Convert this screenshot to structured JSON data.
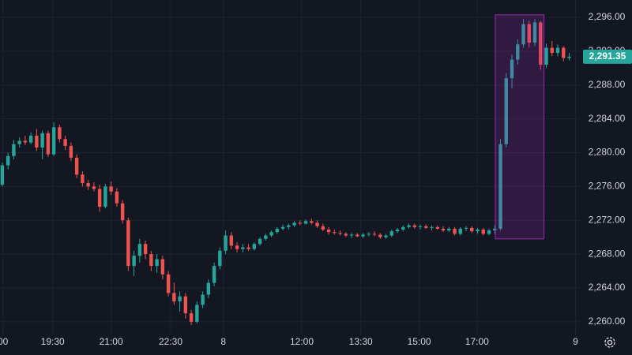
{
  "chart_data": {
    "type": "candlestick",
    "up_color": "#26a69a",
    "down_color": "#ef5350",
    "grid": true,
    "ylim": [
      2258.4,
      2298.05
    ],
    "yticks": [
      {
        "value": 2260,
        "label": "2,260.00"
      },
      {
        "value": 2264,
        "label": "2,264.00"
      },
      {
        "value": 2268,
        "label": "2,268.00"
      },
      {
        "value": 2272,
        "label": "2,272.00"
      },
      {
        "value": 2276,
        "label": "2,276.00"
      },
      {
        "value": 2280,
        "label": "2,280.00"
      },
      {
        "value": 2284,
        "label": "2,284.00"
      },
      {
        "value": 2288,
        "label": "2,288.00"
      },
      {
        "value": 2292,
        "label": "2,292.00"
      },
      {
        "value": 2296,
        "label": "2,296.00"
      }
    ],
    "xlim": [
      -0.4,
      101
    ],
    "xticks": [
      {
        "value": 0.1,
        "label": "00"
      },
      {
        "value": 8.8,
        "label": "19:30"
      },
      {
        "value": 19,
        "label": "21:00"
      },
      {
        "value": 29.4,
        "label": "22:30"
      },
      {
        "value": 38.6,
        "label": "8"
      },
      {
        "value": 52.3,
        "label": "12:00"
      },
      {
        "value": 62.6,
        "label": "13:30"
      },
      {
        "value": 72.8,
        "label": "15:00"
      },
      {
        "value": 82.9,
        "label": "17:00"
      },
      {
        "value": 100.1,
        "label": "9"
      }
    ],
    "current_price": {
      "value": 2291.35,
      "label": "2,291.35",
      "color": "#26a69a"
    },
    "highlight": {
      "x": [
        86.1,
        94.6
      ],
      "y": [
        2269.8,
        2296.3
      ],
      "color": "#9c27b0"
    },
    "ohlc": [
      [
        2276.2,
        2278.8,
        2276.0,
        2278.5
      ],
      [
        2278.5,
        2280.0,
        2278.0,
        2279.6
      ],
      [
        2279.6,
        2281.5,
        2279.2,
        2281.0
      ],
      [
        2281.0,
        2281.8,
        2280.6,
        2281.4
      ],
      [
        2281.4,
        2282.0,
        2280.9,
        2281.2
      ],
      [
        2281.2,
        2282.4,
        2281.0,
        2282.0
      ],
      [
        2282.0,
        2282.8,
        2280.2,
        2280.6
      ],
      [
        2280.6,
        2282.6,
        2279.2,
        2282.3
      ],
      [
        2282.3,
        2282.6,
        2279.5,
        2279.8
      ],
      [
        2279.8,
        2283.6,
        2279.6,
        2283.0
      ],
      [
        2283.0,
        2283.3,
        2281.2,
        2281.6
      ],
      [
        2281.6,
        2282.0,
        2280.3,
        2280.8
      ],
      [
        2280.8,
        2281.2,
        2279.0,
        2279.4
      ],
      [
        2279.4,
        2279.8,
        2277.0,
        2277.4
      ],
      [
        2277.4,
        2277.8,
        2276.0,
        2276.4
      ],
      [
        2276.4,
        2276.8,
        2275.6,
        2276.0
      ],
      [
        2276.0,
        2276.5,
        2275.4,
        2275.7
      ],
      [
        2275.7,
        2276.2,
        2273.0,
        2273.6
      ],
      [
        2273.6,
        2276.3,
        2273.4,
        2276.0
      ],
      [
        2276.0,
        2276.6,
        2275.0,
        2275.4
      ],
      [
        2275.4,
        2275.8,
        2273.6,
        2274.0
      ],
      [
        2274.0,
        2274.4,
        2271.6,
        2272.0
      ],
      [
        2272.0,
        2272.3,
        2266.0,
        2266.6
      ],
      [
        2266.6,
        2268.4,
        2265.4,
        2267.8
      ],
      [
        2267.8,
        2269.8,
        2267.0,
        2269.2
      ],
      [
        2269.2,
        2269.6,
        2267.4,
        2268.0
      ],
      [
        2268.0,
        2268.4,
        2266.0,
        2266.6
      ],
      [
        2266.6,
        2268.0,
        2265.8,
        2267.4
      ],
      [
        2267.4,
        2267.8,
        2265.0,
        2265.6
      ],
      [
        2265.6,
        2266.0,
        2263.0,
        2263.4
      ],
      [
        2263.4,
        2264.6,
        2262.0,
        2262.4
      ],
      [
        2262.4,
        2263.6,
        2261.2,
        2263.0
      ],
      [
        2263.0,
        2263.4,
        2260.4,
        2261.0
      ],
      [
        2261.0,
        2261.4,
        2259.6,
        2260.0
      ],
      [
        2260.0,
        2262.4,
        2259.8,
        2262.0
      ],
      [
        2262.0,
        2263.6,
        2261.6,
        2263.2
      ],
      [
        2263.2,
        2265.0,
        2262.8,
        2264.6
      ],
      [
        2264.6,
        2267.0,
        2264.2,
        2266.6
      ],
      [
        2266.6,
        2268.8,
        2266.2,
        2268.4
      ],
      [
        2268.4,
        2270.8,
        2268.0,
        2270.2
      ],
      [
        2270.2,
        2270.6,
        2268.6,
        2269.0
      ],
      [
        2269.0,
        2269.4,
        2268.2,
        2268.6
      ],
      [
        2268.6,
        2269.2,
        2268.2,
        2268.8
      ],
      [
        2268.8,
        2269.2,
        2268.4,
        2268.6
      ],
      [
        2268.6,
        2269.4,
        2268.4,
        2269.2
      ],
      [
        2269.2,
        2270.0,
        2269.0,
        2269.8
      ],
      [
        2269.8,
        2270.4,
        2269.6,
        2270.2
      ],
      [
        2270.2,
        2270.8,
        2270.0,
        2270.6
      ],
      [
        2270.6,
        2271.2,
        2270.4,
        2271.0
      ],
      [
        2271.0,
        2271.5,
        2270.8,
        2271.2
      ],
      [
        2271.2,
        2271.6,
        2270.9,
        2271.4
      ],
      [
        2271.4,
        2271.9,
        2271.2,
        2271.7
      ],
      [
        2271.7,
        2272.0,
        2271.4,
        2271.6
      ],
      [
        2271.6,
        2272.1,
        2271.5,
        2271.9
      ],
      [
        2271.9,
        2272.2,
        2271.5,
        2271.7
      ],
      [
        2271.7,
        2272.0,
        2271.1,
        2271.3
      ],
      [
        2271.3,
        2271.6,
        2270.7,
        2270.9
      ],
      [
        2270.9,
        2271.2,
        2270.3,
        2270.6
      ],
      [
        2270.6,
        2270.9,
        2270.3,
        2270.5
      ],
      [
        2270.5,
        2270.8,
        2270.2,
        2270.4
      ],
      [
        2270.4,
        2270.6,
        2270.0,
        2270.2
      ],
      [
        2270.2,
        2270.5,
        2269.9,
        2270.3
      ],
      [
        2270.3,
        2270.5,
        2270.0,
        2270.1
      ],
      [
        2270.1,
        2270.5,
        2269.9,
        2270.3
      ],
      [
        2270.3,
        2270.6,
        2270.1,
        2270.4
      ],
      [
        2270.4,
        2270.7,
        2270.1,
        2270.3
      ],
      [
        2270.3,
        2270.5,
        2269.8,
        2270.0
      ],
      [
        2270.0,
        2270.4,
        2269.8,
        2270.2
      ],
      [
        2270.2,
        2270.9,
        2270.0,
        2270.7
      ],
      [
        2270.7,
        2271.1,
        2270.5,
        2270.9
      ],
      [
        2270.9,
        2271.4,
        2270.7,
        2271.2
      ],
      [
        2271.2,
        2271.6,
        2271.0,
        2271.4
      ],
      [
        2271.4,
        2271.6,
        2271.0,
        2271.2
      ],
      [
        2271.2,
        2271.5,
        2270.9,
        2271.3
      ],
      [
        2271.3,
        2271.5,
        2271.0,
        2271.1
      ],
      [
        2271.1,
        2271.4,
        2270.8,
        2271.2
      ],
      [
        2271.2,
        2271.4,
        2270.9,
        2271.0
      ],
      [
        2271.0,
        2271.3,
        2270.6,
        2270.8
      ],
      [
        2270.8,
        2271.2,
        2270.6,
        2271.0
      ],
      [
        2271.0,
        2271.2,
        2270.2,
        2270.4
      ],
      [
        2270.4,
        2271.2,
        2270.2,
        2271.0
      ],
      [
        2271.0,
        2271.3,
        2270.7,
        2271.1
      ],
      [
        2271.1,
        2271.3,
        2270.5,
        2270.7
      ],
      [
        2270.7,
        2271.1,
        2270.4,
        2270.9
      ],
      [
        2270.9,
        2271.1,
        2270.2,
        2270.4
      ],
      [
        2270.4,
        2271.0,
        2270.2,
        2270.8
      ],
      [
        2270.8,
        2271.4,
        2270.4,
        2271.0
      ],
      [
        2271.0,
        2281.6,
        2270.8,
        2281.0
      ],
      [
        2281.0,
        2289.4,
        2280.6,
        2288.8
      ],
      [
        2288.8,
        2291.6,
        2287.6,
        2291.0
      ],
      [
        2291.0,
        2293.4,
        2290.4,
        2292.8
      ],
      [
        2292.8,
        2295.8,
        2292.4,
        2295.2
      ],
      [
        2295.2,
        2295.6,
        2292.4,
        2293.0
      ],
      [
        2293.0,
        2295.8,
        2292.6,
        2295.4
      ],
      [
        2295.4,
        2295.6,
        2289.8,
        2290.4
      ],
      [
        2290.4,
        2292.9,
        2290.0,
        2292.4
      ],
      [
        2292.4,
        2293.2,
        2291.4,
        2291.8
      ],
      [
        2291.8,
        2292.8,
        2291.4,
        2292.4
      ],
      [
        2292.4,
        2292.6,
        2290.8,
        2291.2
      ],
      [
        2291.2,
        2291.8,
        2290.9,
        2291.35
      ]
    ]
  }
}
